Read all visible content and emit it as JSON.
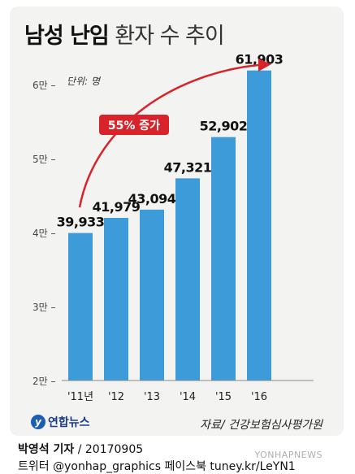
{
  "header": {
    "title_bold": "남성 난임",
    "title_light": "환자 수 추이"
  },
  "chart_data": {
    "type": "bar",
    "title": "남성 난임 환자 수 추이",
    "unit_label": "단위: 명",
    "categories": [
      "'11년",
      "'12",
      "'13",
      "'14",
      "'15",
      "'16"
    ],
    "values": [
      39933,
      41979,
      43094,
      47321,
      52902,
      61903
    ],
    "value_labels": [
      "39,933",
      "41,979",
      "43,094",
      "47,321",
      "52,902",
      "61,903"
    ],
    "y_ticks": [
      20000,
      30000,
      40000,
      50000,
      60000
    ],
    "y_tick_labels": [
      "2만 –",
      "3만 –",
      "4만 –",
      "5만 –",
      "6만 –"
    ],
    "ylim": [
      20000,
      65000
    ],
    "annotation": "55% 증가",
    "bar_color": "#3e9bd9",
    "arrow_color": "#d9232a"
  },
  "footer": {
    "logo_text": "연합뉴스",
    "source": "자료/ 건강보험심사평가원",
    "reporter_name": "박영석 기자",
    "reporter_date": " / 20170905",
    "social": "트위터 @yonhap_graphics  페이스북 tuney.kr/LeYN1",
    "watermark": "YONHAPNEWS"
  }
}
